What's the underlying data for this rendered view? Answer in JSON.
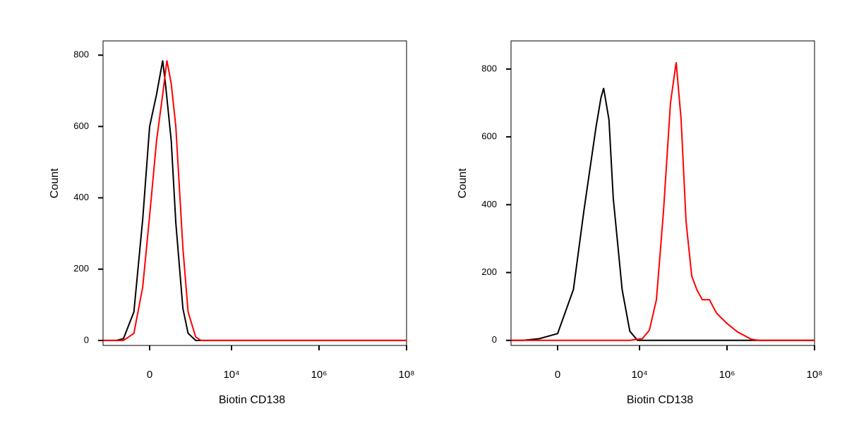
{
  "chart_data": [
    {
      "type": "line",
      "xlabel": "Biotin CD138",
      "ylabel": "Count",
      "xscale": "biexponential",
      "xlim": [
        -1550,
        100000000
      ],
      "ylim": [
        -14,
        840
      ],
      "xticks": [
        0,
        {
          "value": 10000,
          "label": "10⁴"
        },
        {
          "value": 1000000,
          "label": "10⁶"
        },
        {
          "value": 100000000,
          "label": "10⁸"
        }
      ],
      "yticks": [
        0,
        200,
        400,
        600,
        800
      ],
      "series": [
        {
          "color": "#000000",
          "x": [
            -1550,
            -750,
            -500,
            -250,
            -100,
            0,
            100,
            200,
            250,
            375,
            500,
            750,
            1000,
            1500,
            2000,
            100000000
          ],
          "values": [
            0,
            0,
            5,
            80,
            340,
            600,
            690,
            785,
            720,
            560,
            330,
            90,
            20,
            0,
            0,
            0
          ]
        },
        {
          "color": "#ff0000",
          "x": [
            -1550,
            -500,
            -250,
            -100,
            0,
            100,
            200,
            280,
            375,
            500,
            750,
            1000,
            1500,
            2000,
            100000000
          ],
          "values": [
            0,
            0,
            20,
            150,
            350,
            560,
            690,
            785,
            720,
            600,
            260,
            80,
            10,
            0,
            0
          ]
        }
      ]
    },
    {
      "type": "line",
      "xlabel": "Biotin CD138",
      "ylabel": "Count",
      "xscale": "biexponential",
      "xlim": [
        -1550,
        100000000
      ],
      "ylim": [
        -15,
        883
      ],
      "xticks": [
        0,
        {
          "value": 10000,
          "label": "10⁴"
        },
        {
          "value": 1000000,
          "label": "10⁶"
        },
        {
          "value": 100000000,
          "label": "10⁸"
        }
      ],
      "yticks": [
        0,
        200,
        400,
        600,
        800
      ],
      "series": [
        {
          "color": "#000000",
          "x": [
            -1550,
            -800,
            -300,
            0,
            250,
            500,
            1000,
            1300,
            1500,
            2000,
            2500,
            4000,
            6000,
            9000,
            100000000
          ],
          "values": [
            0,
            0,
            5,
            20,
            150,
            380,
            630,
            715,
            744,
            650,
            420,
            150,
            27,
            0,
            0
          ]
        },
        {
          "color": "#ff0000",
          "x": [
            -1550,
            6000,
            11600,
            16800,
            24400,
            35300,
            51100,
            69000,
            89300,
            116000,
            156000,
            203000,
            272000,
            397000,
            576000,
            995000,
            1730000,
            3600000,
            5300000,
            100000000
          ],
          "values": [
            0,
            0,
            5,
            30,
            120,
            380,
            700,
            820,
            650,
            350,
            190,
            150,
            120,
            120,
            80,
            50,
            25,
            3,
            0,
            0
          ]
        }
      ]
    }
  ]
}
